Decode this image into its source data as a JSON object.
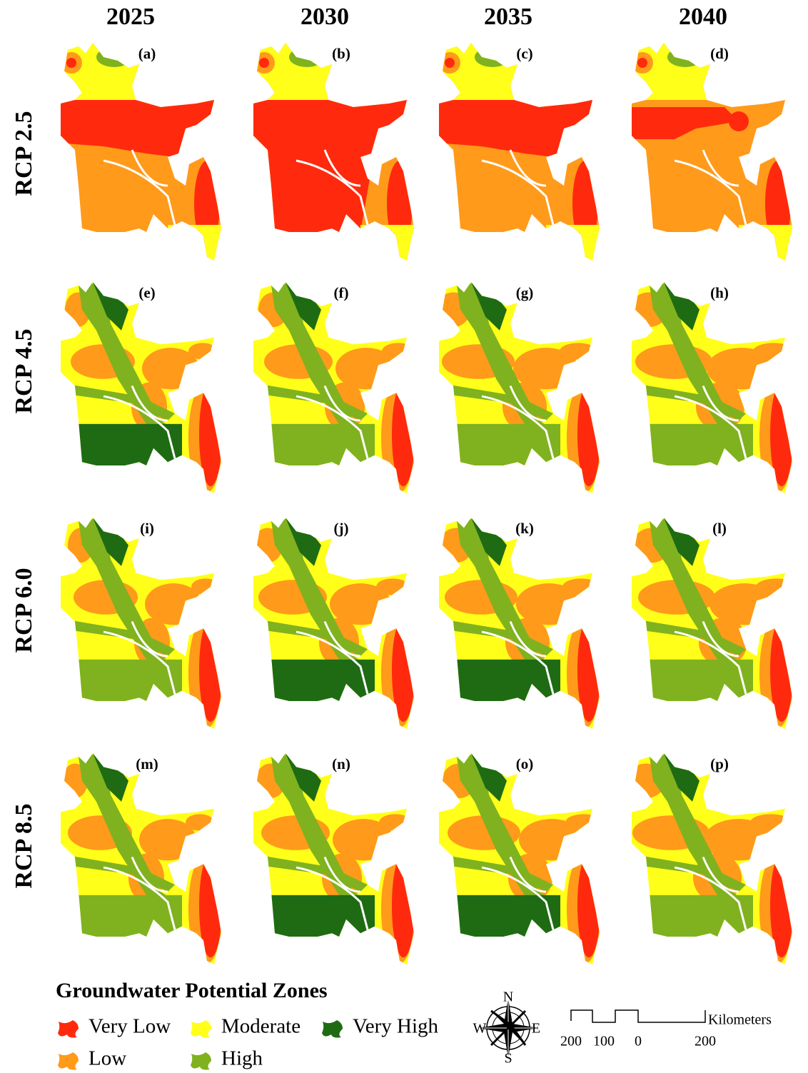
{
  "columns": [
    "2025",
    "2030",
    "2035",
    "2040"
  ],
  "rows": [
    "RCP 2.5",
    "RCP 4.5",
    "RCP 6.0",
    "RCP 8.5"
  ],
  "panels": [
    "(a)",
    "(b)",
    "(c)",
    "(d)",
    "(e)",
    "(f)",
    "(g)",
    "(h)",
    "(i)",
    "(j)",
    "(k)",
    "(l)",
    "(m)",
    "(n)",
    "(o)",
    "(p)"
  ],
  "legend": {
    "title": "Groundwater Potential Zones",
    "items": [
      {
        "name": "Very Low",
        "color": "#ff2a0d"
      },
      {
        "name": "Low",
        "color": "#ff9a1a"
      },
      {
        "name": "Moderate",
        "color": "#ffff1a"
      },
      {
        "name": "High",
        "color": "#7fb21e"
      },
      {
        "name": "Very High",
        "color": "#1e6b14"
      }
    ]
  },
  "compass": {
    "north": "N",
    "east": "E",
    "south": "S",
    "west": "W"
  },
  "scale": {
    "labels": [
      "200",
      "100",
      "0",
      "200"
    ],
    "unit": "Kilometers"
  }
}
